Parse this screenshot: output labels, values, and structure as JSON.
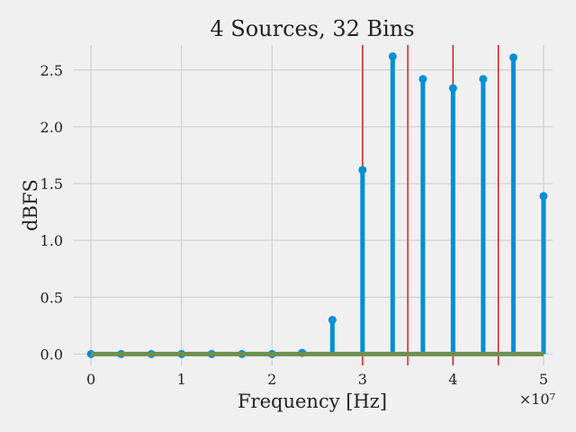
{
  "chart_data": {
    "type": "stem",
    "title": "4 Sources, 32 Bins",
    "xlabel": "Frequency [Hz]",
    "ylabel": "dBFS",
    "x_multiplier_label": "×10⁷",
    "xlim": [
      -0.2,
      5.1
    ],
    "ylim": [
      -0.1,
      2.72
    ],
    "x_ticks": [
      0,
      1,
      2,
      3,
      4,
      5
    ],
    "x_tick_labels": [
      "0",
      "1",
      "2",
      "3",
      "4",
      "5"
    ],
    "y_ticks": [
      0.0,
      0.5,
      1.0,
      1.5,
      2.0,
      2.5
    ],
    "y_tick_labels": [
      "0.0",
      "0.5",
      "1.0",
      "1.5",
      "2.0",
      "2.5"
    ],
    "grid": true,
    "series": [
      {
        "color": "#008fd5",
        "x": [
          0,
          0.333,
          0.667,
          1.0,
          1.333,
          1.667,
          2.0,
          2.333,
          2.667,
          3.0,
          3.333,
          3.667,
          4.0,
          4.333,
          4.667,
          5.0
        ],
        "values": [
          0.0,
          0.0,
          0.0,
          0.0,
          0.0,
          0.0,
          0.0,
          0.01,
          0.3,
          1.62,
          2.62,
          2.42,
          2.34,
          2.42,
          2.61,
          1.39
        ]
      }
    ],
    "baseline": {
      "y": 0,
      "x_range": [
        0,
        5.0
      ],
      "color": "#6d904f"
    },
    "vlines": {
      "x": [
        3.0,
        3.5,
        4.0,
        4.5
      ],
      "color": "#e00000"
    }
  }
}
